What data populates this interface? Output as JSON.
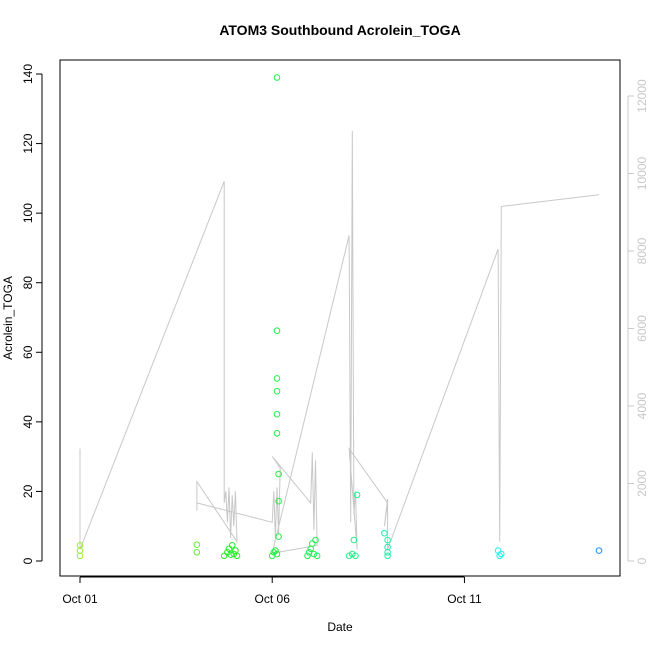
{
  "chart_data": {
    "type": "scatter",
    "title": "ATOM3 Southbound Acrolein_TOGA",
    "xlabel": "Date",
    "ylabel": "Acrolein_TOGA",
    "x_ticks": [
      "Oct 01",
      "Oct 06",
      "Oct 11"
    ],
    "xlim": [
      "2017-10-01T00:00",
      "2017-10-14T12:00"
    ],
    "ylim": [
      0,
      140
    ],
    "y_ticks": [
      0,
      20,
      40,
      60,
      80,
      100,
      120,
      140
    ],
    "y2lim": [
      0,
      12000
    ],
    "y2_ticks": [
      0,
      2000,
      4000,
      6000,
      8000,
      10000,
      12000
    ],
    "grid": false,
    "colors": {
      "axis": "#000000",
      "secondary_axis": "#c8c8c8",
      "altitude_line": "#c8c8c8"
    },
    "series": [
      {
        "marker": "open-circle",
        "points": [
          {
            "x": "2017-10-01T00:00",
            "y": 1.5,
            "color": "#99ee33"
          },
          {
            "x": "2017-10-01T00:00",
            "y": 3.0,
            "color": "#99ee33"
          },
          {
            "x": "2017-10-01T00:00",
            "y": 4.5,
            "color": "#99ee33"
          },
          {
            "x": "2017-10-04T01:00",
            "y": 2.5,
            "color": "#66ee33"
          },
          {
            "x": "2017-10-04T01:00",
            "y": 4.7,
            "color": "#66ee33"
          },
          {
            "x": "2017-10-04T18:00",
            "y": 1.5,
            "color": "#33ee22"
          },
          {
            "x": "2017-10-04T20:00",
            "y": 2.5,
            "color": "#22ee22"
          },
          {
            "x": "2017-10-04T21:00",
            "y": 3.5,
            "color": "#22ee22"
          },
          {
            "x": "2017-10-04T22:00",
            "y": 1.8,
            "color": "#22ee22"
          },
          {
            "x": "2017-10-04T23:00",
            "y": 4.5,
            "color": "#22ee22"
          },
          {
            "x": "2017-10-05T00:00",
            "y": 2.0,
            "color": "#22ee22"
          },
          {
            "x": "2017-10-05T01:00",
            "y": 3.0,
            "color": "#22ee22"
          },
          {
            "x": "2017-10-05T02:00",
            "y": 1.5,
            "color": "#22ee22"
          },
          {
            "x": "2017-10-06T00:00",
            "y": 1.5,
            "color": "#22ee44"
          },
          {
            "x": "2017-10-06T01:00",
            "y": 2.5,
            "color": "#22ee44"
          },
          {
            "x": "2017-10-06T02:00",
            "y": 3.0,
            "color": "#22ee44"
          },
          {
            "x": "2017-10-06T03:00",
            "y": 2.0,
            "color": "#22ee44"
          },
          {
            "x": "2017-10-06T04:00",
            "y": 7.0,
            "color": "#22ee44"
          },
          {
            "x": "2017-10-06T04:00",
            "y": 17.2,
            "color": "#22ee44"
          },
          {
            "x": "2017-10-06T04:00",
            "y": 25.0,
            "color": "#22ee44"
          },
          {
            "x": "2017-10-06T03:00",
            "y": 36.7,
            "color": "#22ee44"
          },
          {
            "x": "2017-10-06T03:00",
            "y": 42.2,
            "color": "#22ee44"
          },
          {
            "x": "2017-10-06T03:00",
            "y": 48.8,
            "color": "#22ee44"
          },
          {
            "x": "2017-10-06T03:00",
            "y": 52.5,
            "color": "#22ee44"
          },
          {
            "x": "2017-10-06T03:00",
            "y": 66.2,
            "color": "#22ee44"
          },
          {
            "x": "2017-10-06T03:00",
            "y": 139.0,
            "color": "#22ee44"
          },
          {
            "x": "2017-10-06T22:00",
            "y": 1.5,
            "color": "#22ee55"
          },
          {
            "x": "2017-10-06T23:00",
            "y": 2.5,
            "color": "#22ee55"
          },
          {
            "x": "2017-10-07T00:00",
            "y": 3.5,
            "color": "#22ee55"
          },
          {
            "x": "2017-10-07T01:00",
            "y": 5.0,
            "color": "#22ee55"
          },
          {
            "x": "2017-10-07T02:00",
            "y": 2.0,
            "color": "#22ee55"
          },
          {
            "x": "2017-10-07T03:00",
            "y": 6.0,
            "color": "#22ee55"
          },
          {
            "x": "2017-10-07T04:00",
            "y": 1.5,
            "color": "#22ee55"
          },
          {
            "x": "2017-10-08T00:00",
            "y": 1.5,
            "color": "#22ee88"
          },
          {
            "x": "2017-10-08T02:00",
            "y": 2.0,
            "color": "#22ee88"
          },
          {
            "x": "2017-10-08T03:00",
            "y": 6.0,
            "color": "#22ee88"
          },
          {
            "x": "2017-10-08T04:00",
            "y": 1.5,
            "color": "#22ee88"
          },
          {
            "x": "2017-10-08T05:00",
            "y": 19.0,
            "color": "#22ee88"
          },
          {
            "x": "2017-10-08T22:00",
            "y": 8.0,
            "color": "#22eeaa"
          },
          {
            "x": "2017-10-09T00:00",
            "y": 6.0,
            "color": "#22eeaa"
          },
          {
            "x": "2017-10-09T00:00",
            "y": 4.0,
            "color": "#22eeaa"
          },
          {
            "x": "2017-10-09T00:00",
            "y": 2.5,
            "color": "#22eeaa"
          },
          {
            "x": "2017-10-09T00:00",
            "y": 1.5,
            "color": "#22eeaa"
          },
          {
            "x": "2017-10-11T21:00",
            "y": 3.0,
            "color": "#22eeee"
          },
          {
            "x": "2017-10-11T22:00",
            "y": 1.5,
            "color": "#22eeee"
          },
          {
            "x": "2017-10-11T23:00",
            "y": 2.0,
            "color": "#22eeee"
          },
          {
            "x": "2017-10-14T12:00",
            "y": 3.0,
            "color": "#1e90ff"
          }
        ]
      },
      {
        "axis": "right",
        "line": "altitude_line",
        "x": [
          "2017-10-01T00:00",
          "2017-10-01T00:00",
          "2017-10-01T00:00",
          "2017-10-04T18:00",
          "2017-10-04T18:00",
          "2017-10-04T19:00",
          "2017-10-04T20:00",
          "2017-10-04T21:00",
          "2017-10-04T22:00",
          "2017-10-04T23:00",
          "2017-10-05T00:00",
          "2017-10-05T01:00",
          "2017-10-05T02:00",
          "2017-10-04T01:00",
          "2017-10-04T01:00",
          "2017-10-04T01:00",
          "2017-10-06T00:00",
          "2017-10-06T01:00",
          "2017-10-06T02:00",
          "2017-10-06T03:00",
          "2017-10-06T04:00",
          "2017-10-06T05:00",
          "2017-10-06T00:00",
          "2017-10-07T00:00",
          "2017-10-07T01:00",
          "2017-10-07T02:00",
          "2017-10-07T03:00",
          "2017-10-07T04:00",
          "2017-10-06T00:00",
          "2017-10-08T00:00",
          "2017-10-08T01:00",
          "2017-10-08T02:00",
          "2017-10-08T03:00",
          "2017-10-08T04:00",
          "2017-10-08T05:00",
          "2017-10-08T00:00",
          "2017-10-09T00:00",
          "2017-10-08T22:00",
          "2017-10-09T00:00",
          "2017-10-09T00:00",
          "2017-10-11T21:00",
          "2017-10-11T22:00",
          "2017-10-11T23:00",
          "2017-10-14T12:00"
        ],
        "y": [
          2900,
          450,
          300,
          9800,
          1500,
          1800,
          1000,
          1900,
          600,
          1700,
          900,
          1800,
          500,
          2050,
          1300,
          1500,
          1000,
          1800,
          600,
          1900,
          700,
          2400,
          2700,
          1500,
          2800,
          800,
          2600,
          400,
          200,
          8400,
          1000,
          11100,
          1200,
          1800,
          300,
          2900,
          1500,
          900,
          1600,
          300,
          8050,
          500,
          9150,
          9450
        ]
      }
    ]
  }
}
